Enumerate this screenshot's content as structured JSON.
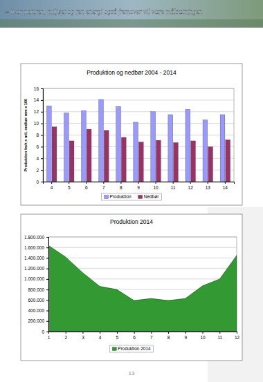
{
  "header": {
    "text": "– hvor naturen, miljøet og ren energi også fremover vil være målsætningen"
  },
  "page_number": "13",
  "chart_data": [
    {
      "type": "bar",
      "title": "Produktion og nedbør 2004 - 2014",
      "y_label": "Produktion kwh x mil, nedbør mm x 100",
      "categories": [
        "4",
        "5",
        "6",
        "7",
        "8",
        "9",
        "10",
        "11",
        "12",
        "13",
        "14"
      ],
      "series": [
        {
          "name": "Produktion",
          "color": "#9999ff",
          "values": [
            13.0,
            11.8,
            12.2,
            14.1,
            12.9,
            10.2,
            12.0,
            11.5,
            12.4,
            10.6,
            11.5
          ]
        },
        {
          "name": "Nedbør",
          "color": "#993366",
          "values": [
            9.4,
            7.0,
            9.0,
            8.8,
            7.6,
            6.8,
            7.1,
            6.7,
            7.0,
            6.0,
            7.2
          ]
        }
      ],
      "ylim": [
        0,
        16
      ],
      "yticks": [
        0,
        2,
        4,
        6,
        8,
        10,
        12,
        14,
        16
      ],
      "grid": true,
      "legend": "bottom"
    },
    {
      "type": "area",
      "title": "Produktion 2014",
      "categories": [
        "1",
        "2",
        "3",
        "4",
        "5",
        "6",
        "7",
        "8",
        "9",
        "10",
        "11",
        "12"
      ],
      "series": [
        {
          "name": "Produktion 2014",
          "color": "#339933",
          "values": [
            1640000,
            1420000,
            1120000,
            860000,
            800000,
            590000,
            630000,
            590000,
            630000,
            870000,
            1000000,
            1450000
          ]
        }
      ],
      "ylim": [
        0,
        1800000
      ],
      "yticks": [
        0,
        {
          "value": 200000,
          "label": "200.000"
        },
        {
          "value": 400000,
          "label": "400.000"
        },
        {
          "value": 600000,
          "label": "600.000"
        },
        {
          "value": 800000,
          "label": "800.000"
        },
        {
          "value": 1000000,
          "label": "1.000.000"
        },
        {
          "value": 1200000,
          "label": "1.200.000"
        },
        {
          "value": 1400000,
          "label": "1.400.000"
        },
        {
          "value": 1600000,
          "label": "1.600.000"
        },
        {
          "value": 1800000,
          "label": "1.800.000"
        }
      ],
      "grid": true,
      "legend": "bottom"
    }
  ]
}
